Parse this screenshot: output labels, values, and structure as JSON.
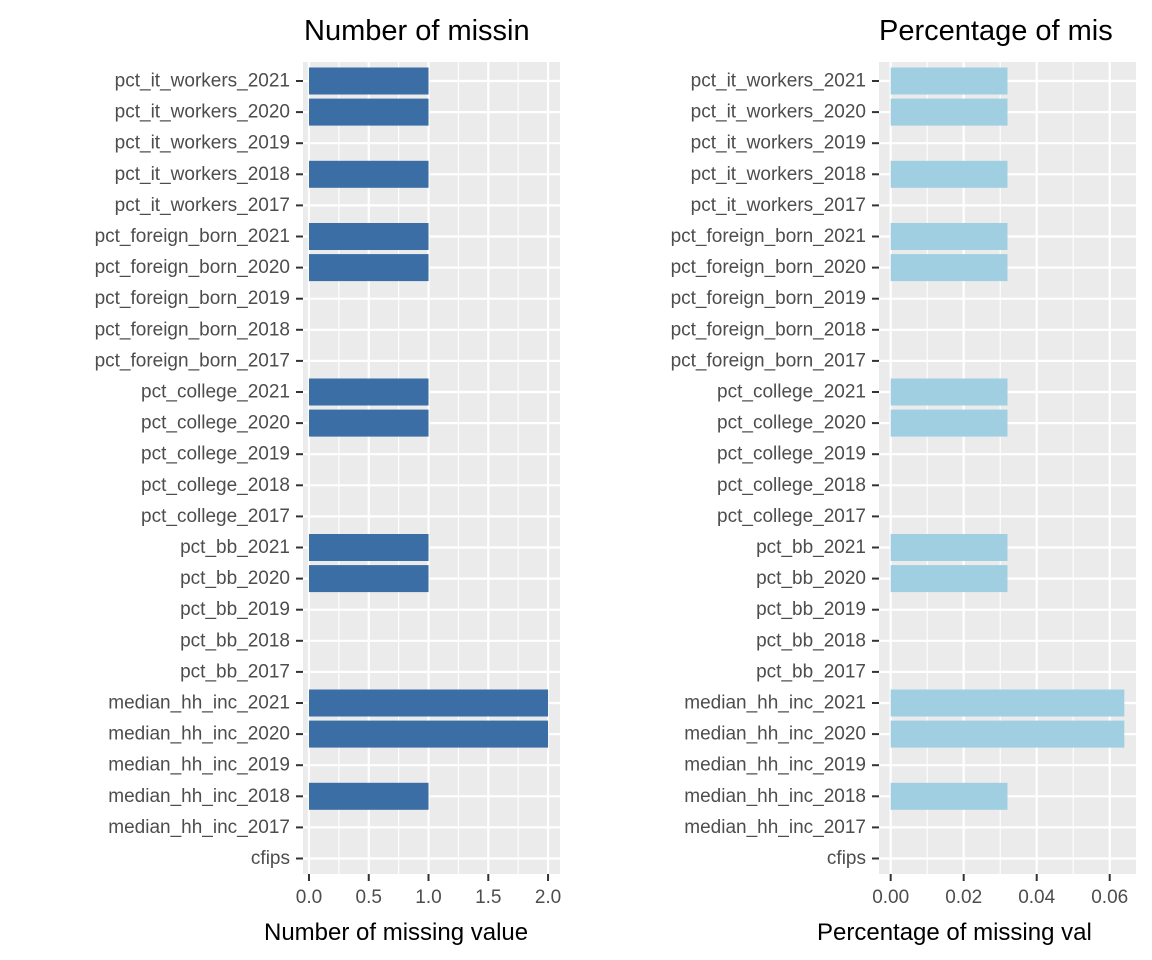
{
  "chart_data": [
    {
      "type": "bar",
      "orientation": "horizontal",
      "title": "Number of missin",
      "xlabel": "Number of missing value",
      "ylabel": "",
      "xlim": [
        -0.05,
        2.1
      ],
      "x_ticks": [
        0.0,
        0.5,
        1.0,
        1.5,
        2.0
      ],
      "x_tick_labels": [
        "0.0",
        "0.5",
        "1.0",
        "1.5",
        "2.0"
      ],
      "grid": true,
      "bar_color": "#3A6EA5",
      "categories": [
        "pct_it_workers_2021",
        "pct_it_workers_2020",
        "pct_it_workers_2019",
        "pct_it_workers_2018",
        "pct_it_workers_2017",
        "pct_foreign_born_2021",
        "pct_foreign_born_2020",
        "pct_foreign_born_2019",
        "pct_foreign_born_2018",
        "pct_foreign_born_2017",
        "pct_college_2021",
        "pct_college_2020",
        "pct_college_2019",
        "pct_college_2018",
        "pct_college_2017",
        "pct_bb_2021",
        "pct_bb_2020",
        "pct_bb_2019",
        "pct_bb_2018",
        "pct_bb_2017",
        "median_hh_inc_2021",
        "median_hh_inc_2020",
        "median_hh_inc_2019",
        "median_hh_inc_2018",
        "median_hh_inc_2017",
        "cfips"
      ],
      "values": [
        1,
        1,
        0,
        1,
        0,
        1,
        1,
        0,
        0,
        0,
        1,
        1,
        0,
        0,
        0,
        1,
        1,
        0,
        0,
        0,
        2,
        2,
        0,
        1,
        0,
        0
      ]
    },
    {
      "type": "bar",
      "orientation": "horizontal",
      "title": "Percentage of mis",
      "xlabel": "Percentage of missing val",
      "ylabel": "",
      "xlim": [
        -0.0032,
        0.0672
      ],
      "x_ticks": [
        0.0,
        0.02,
        0.04,
        0.06
      ],
      "x_tick_labels": [
        "0.00",
        "0.02",
        "0.04",
        "0.06"
      ],
      "grid": true,
      "bar_color": "#A0CFE2",
      "categories": [
        "pct_it_workers_2021",
        "pct_it_workers_2020",
        "pct_it_workers_2019",
        "pct_it_workers_2018",
        "pct_it_workers_2017",
        "pct_foreign_born_2021",
        "pct_foreign_born_2020",
        "pct_foreign_born_2019",
        "pct_foreign_born_2018",
        "pct_foreign_born_2017",
        "pct_college_2021",
        "pct_college_2020",
        "pct_college_2019",
        "pct_college_2018",
        "pct_college_2017",
        "pct_bb_2021",
        "pct_bb_2020",
        "pct_bb_2019",
        "pct_bb_2018",
        "pct_bb_2017",
        "median_hh_inc_2021",
        "median_hh_inc_2020",
        "median_hh_inc_2019",
        "median_hh_inc_2018",
        "median_hh_inc_2017",
        "cfips"
      ],
      "values": [
        0.032,
        0.032,
        0,
        0.032,
        0,
        0.032,
        0.032,
        0,
        0,
        0,
        0.032,
        0.032,
        0,
        0,
        0,
        0.032,
        0.032,
        0,
        0,
        0,
        0.064,
        0.064,
        0,
        0.032,
        0,
        0
      ]
    }
  ]
}
